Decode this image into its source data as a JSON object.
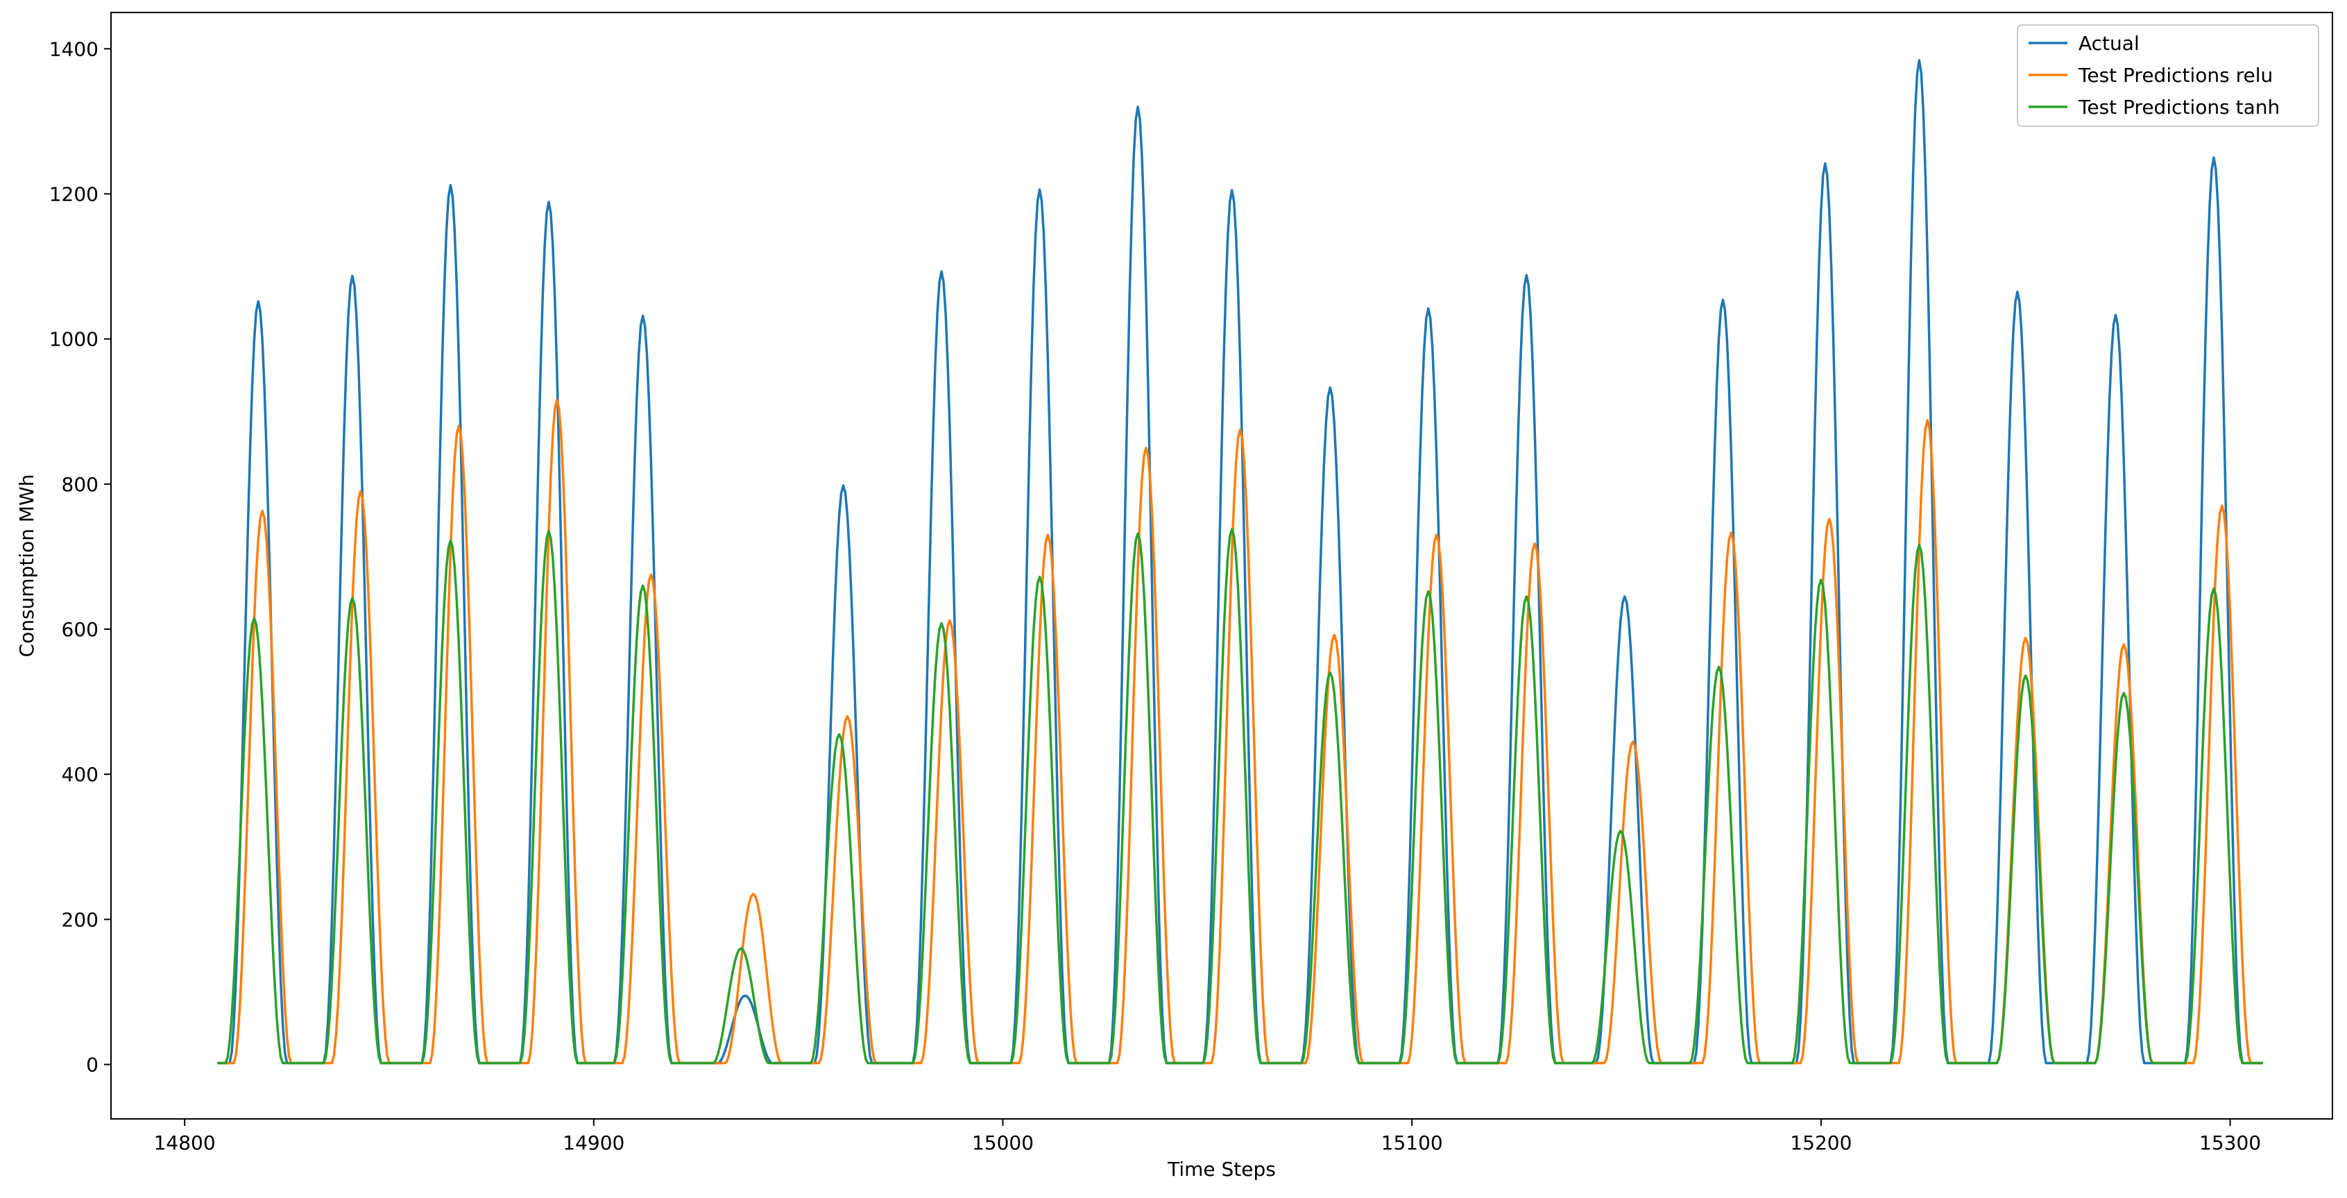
{
  "chart_data": {
    "type": "line",
    "title": "",
    "xlabel": "Time Steps",
    "ylabel": "Consumption MWh",
    "xlim": [
      14782,
      15325
    ],
    "ylim": [
      -75,
      1450
    ],
    "xticks": [
      14800,
      14900,
      15000,
      15100,
      15200,
      15300
    ],
    "yticks": [
      0,
      200,
      400,
      600,
      800,
      1000,
      1200,
      1400
    ],
    "grid": false,
    "legend": "top-right",
    "x_start": 14808,
    "x_end": 15308,
    "series": [
      {
        "name": "Actual",
        "color": "#1f77b4",
        "peaks": [
          {
            "center": 14818,
            "value": 1052
          },
          {
            "center": 14841,
            "value": 1087
          },
          {
            "center": 14865,
            "value": 1212
          },
          {
            "center": 14889,
            "value": 1189
          },
          {
            "center": 14912,
            "value": 1032
          },
          {
            "center": 14937,
            "value": 95
          },
          {
            "center": 14961,
            "value": 798
          },
          {
            "center": 14985,
            "value": 1093
          },
          {
            "center": 15009,
            "value": 1206
          },
          {
            "center": 15033,
            "value": 1320
          },
          {
            "center": 15056,
            "value": 1205
          },
          {
            "center": 15080,
            "value": 933
          },
          {
            "center": 15104,
            "value": 1042
          },
          {
            "center": 15128,
            "value": 1088
          },
          {
            "center": 15152,
            "value": 645
          },
          {
            "center": 15176,
            "value": 1054
          },
          {
            "center": 15201,
            "value": 1242
          },
          {
            "center": 15224,
            "value": 1384
          },
          {
            "center": 15248,
            "value": 1065
          },
          {
            "center": 15272,
            "value": 1033
          },
          {
            "center": 15296,
            "value": 1250
          }
        ]
      },
      {
        "name": "Test Predictions relu",
        "color": "#ff7f0e",
        "peaks": [
          {
            "center": 14819,
            "value": 763
          },
          {
            "center": 14843,
            "value": 790
          },
          {
            "center": 14867,
            "value": 880
          },
          {
            "center": 14891,
            "value": 916
          },
          {
            "center": 14914,
            "value": 675
          },
          {
            "center": 14939,
            "value": 235
          },
          {
            "center": 14962,
            "value": 480
          },
          {
            "center": 14987,
            "value": 612
          },
          {
            "center": 15011,
            "value": 730
          },
          {
            "center": 15035,
            "value": 850
          },
          {
            "center": 15058,
            "value": 875
          },
          {
            "center": 15081,
            "value": 592
          },
          {
            "center": 15106,
            "value": 730
          },
          {
            "center": 15130,
            "value": 718
          },
          {
            "center": 15154,
            "value": 445
          },
          {
            "center": 15178,
            "value": 733
          },
          {
            "center": 15202,
            "value": 752
          },
          {
            "center": 15226,
            "value": 888
          },
          {
            "center": 15250,
            "value": 588
          },
          {
            "center": 15274,
            "value": 579
          },
          {
            "center": 15298,
            "value": 770
          }
        ]
      },
      {
        "name": "Test Predictions tanh",
        "color": "#2ca02c",
        "peaks": [
          {
            "center": 14817,
            "value": 615
          },
          {
            "center": 14841,
            "value": 643
          },
          {
            "center": 14865,
            "value": 722
          },
          {
            "center": 14889,
            "value": 735
          },
          {
            "center": 14912,
            "value": 660
          },
          {
            "center": 14936,
            "value": 160
          },
          {
            "center": 14960,
            "value": 455
          },
          {
            "center": 14985,
            "value": 608
          },
          {
            "center": 15009,
            "value": 672
          },
          {
            "center": 15033,
            "value": 732
          },
          {
            "center": 15056,
            "value": 738
          },
          {
            "center": 15080,
            "value": 540
          },
          {
            "center": 15104,
            "value": 652
          },
          {
            "center": 15128,
            "value": 645
          },
          {
            "center": 15151,
            "value": 322
          },
          {
            "center": 15175,
            "value": 548
          },
          {
            "center": 15200,
            "value": 668
          },
          {
            "center": 15224,
            "value": 716
          },
          {
            "center": 15250,
            "value": 536
          },
          {
            "center": 15274,
            "value": 512
          },
          {
            "center": 15296,
            "value": 656
          }
        ]
      }
    ]
  }
}
